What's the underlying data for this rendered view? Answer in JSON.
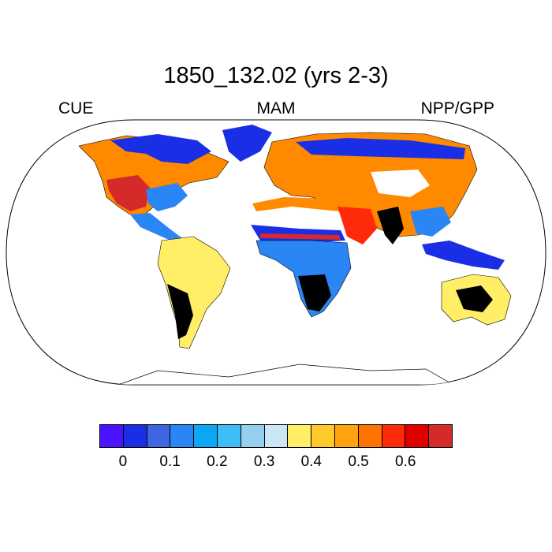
{
  "title": "1850_132.02 (yrs 2-3)",
  "left_label": "CUE",
  "center_label": "MAM",
  "right_label": "NPP/GPP",
  "colorbar": {
    "colors": [
      "#4b14ff",
      "#1a2ee6",
      "#3d66e0",
      "#2a85f5",
      "#0da6f5",
      "#3dbff5",
      "#94cff0",
      "#cce6f7",
      "#ffee66",
      "#ffc929",
      "#ffa30f",
      "#ff7300",
      "#ff2a0a",
      "#e00000",
      "#d42a2a"
    ],
    "tick_labels": [
      "0",
      "0.1",
      "0.2",
      "0.3",
      "0.4",
      "0.5",
      "0.6"
    ]
  },
  "regions": [
    {
      "name": "north-america",
      "color": "#ff8a00"
    },
    {
      "name": "western-us",
      "color": "#d42a2a"
    },
    {
      "name": "canada-north",
      "color": "#1a2ee6"
    },
    {
      "name": "eastern-us",
      "color": "#2a85f5"
    },
    {
      "name": "south-america",
      "color": "#ffee66"
    },
    {
      "name": "europe-asia",
      "color": "#ff8a00"
    },
    {
      "name": "siberia",
      "color": "#1a2ee6"
    },
    {
      "name": "sahara",
      "color": "#ffffff"
    },
    {
      "name": "sahel",
      "color": "#1a2ee6"
    },
    {
      "name": "africa",
      "color": "#2a85f5"
    },
    {
      "name": "australia",
      "color": "#ff2a0a"
    },
    {
      "name": "southeast-asia",
      "color": "#ffee66"
    }
  ]
}
